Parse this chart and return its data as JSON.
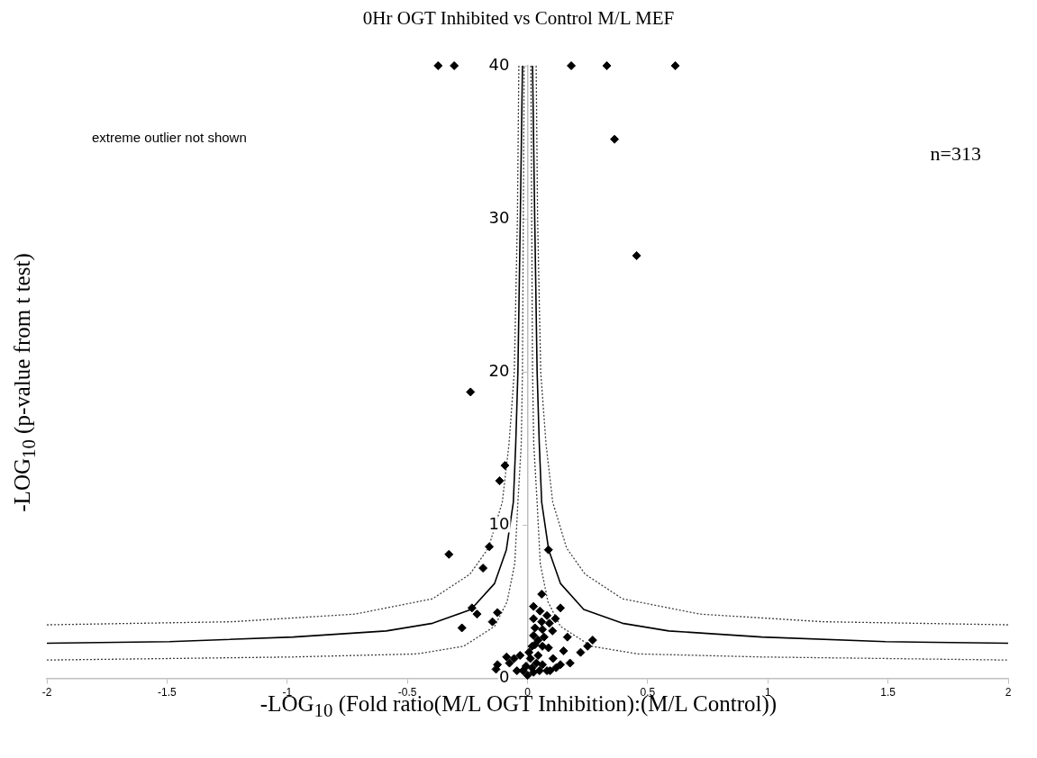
{
  "chart_data": {
    "type": "scatter",
    "title": "0Hr OGT Inhibited vs Control M/L MEF",
    "xlabel": "-LOG$_{10}$ (Fold ratio(M/L OGT Inhibition):(M/L Control))",
    "ylabel": "-LOG$_{10}$ (p-value from t test)",
    "annotations": [
      "extreme outlier not shown",
      "n=313"
    ],
    "xlim": [
      -2,
      2
    ],
    "xticks": [
      -2,
      -1.5,
      -1,
      -0.5,
      0,
      0.5,
      1,
      1.5,
      2
    ],
    "ylim": [
      0,
      40
    ],
    "yticks": [
      0,
      10,
      20,
      30,
      40
    ],
    "grid": false,
    "legend": false,
    "marker": "diamond",
    "series": [
      {
        "type": "scatter",
        "color": "#000000",
        "x": [
          -0.372,
          -0.305,
          0.182,
          0.33,
          0.615,
          0.362,
          0.454,
          -0.237,
          -0.094,
          -0.116,
          -0.159,
          -0.327,
          -0.185,
          0.087,
          -0.231,
          -0.21,
          -0.125,
          -0.146,
          -0.273,
          0.059,
          0.025,
          0.137,
          0.052,
          0.081,
          0.025,
          0.116,
          0.059,
          0.091,
          0.062,
          0.104,
          0.025,
          0.069,
          0.166,
          0.271,
          0.25,
          0.221,
          0.15,
          0.087,
          0.031,
          0.044,
          0.177,
          0.137,
          -0.125,
          -0.131,
          -0.087,
          -0.056,
          -0.031,
          -0.075,
          -0.044,
          -0.019,
          0,
          0.012,
          0.019,
          0.037,
          0.062,
          0.081,
          0.106,
          0.094,
          0.119,
          -0.006,
          0.025,
          0.05,
          0.006,
          0.031,
          0.044,
          0.062,
          0.019
        ],
        "values": [
          40,
          40,
          40,
          40,
          40,
          35.2,
          27.6,
          18.7,
          13.9,
          12.9,
          8.6,
          8.1,
          7.2,
          8.4,
          4.6,
          4.2,
          4.3,
          3.7,
          3.3,
          5.5,
          4.7,
          4.6,
          4.4,
          4.1,
          3.9,
          3.9,
          3.7,
          3.6,
          3.2,
          3.1,
          2.8,
          2.7,
          2.7,
          2.5,
          2.1,
          1.7,
          1.8,
          2.0,
          2.2,
          1.5,
          1.0,
          0.9,
          0.9,
          0.6,
          1.4,
          1.3,
          1.5,
          1.0,
          0.5,
          0.5,
          0.2,
          1.3,
          0.7,
          1.0,
          0.9,
          0.5,
          1.3,
          0.5,
          0.7,
          0.8,
          0.4,
          0.5,
          1.7,
          3.3,
          2.5,
          2.1,
          2.1
        ]
      },
      {
        "type": "line",
        "color": "#000000",
        "line_style": "solid",
        "marker": "none",
        "x": [
          -2,
          -1.49,
          -0.975,
          -0.588,
          -0.395,
          -0.235,
          -0.137,
          -0.088,
          -0.059,
          -0.049,
          -0.04,
          -0.03,
          -0.021
        ],
        "values": [
          2.3,
          2.4,
          2.7,
          3.1,
          3.6,
          4.5,
          6.2,
          8.4,
          11.5,
          15.3,
          20,
          30,
          40
        ]
      },
      {
        "type": "line",
        "color": "#000000",
        "line_style": "solid",
        "marker": "none",
        "x": [
          0.021,
          0.03,
          0.04,
          0.049,
          0.059,
          0.088,
          0.137,
          0.234,
          0.395,
          0.588,
          0.975,
          1.49,
          2
        ],
        "values": [
          40,
          30,
          20,
          15.3,
          11.5,
          8.4,
          6.2,
          4.5,
          3.6,
          3.1,
          2.7,
          2.4,
          2.3
        ]
      },
      {
        "type": "line",
        "color": "#404040",
        "line_style": "dotted",
        "marker": "none",
        "x": [
          -2,
          -1.23,
          -0.717,
          -0.395,
          -0.24,
          -0.163,
          -0.105,
          -0.077,
          -0.055,
          -0.042,
          -0.036
        ],
        "values": [
          3.5,
          3.7,
          4.2,
          5.2,
          6.8,
          8.5,
          11.5,
          15.3,
          20,
          30,
          40
        ]
      },
      {
        "type": "line",
        "color": "#404040",
        "line_style": "dotted",
        "marker": "none",
        "x": [
          0.036,
          0.042,
          0.055,
          0.077,
          0.105,
          0.163,
          0.24,
          0.395,
          0.717,
          1.23,
          2
        ],
        "values": [
          40,
          30,
          20,
          15.3,
          11.5,
          8.5,
          6.8,
          5.2,
          4.2,
          3.7,
          3.5
        ]
      },
      {
        "type": "line",
        "color": "#404040",
        "line_style": "dotted",
        "marker": "none",
        "x": [
          -2,
          -0.975,
          -0.459,
          -0.266,
          -0.137,
          -0.085,
          -0.053,
          -0.04,
          -0.026,
          -0.021,
          -0.014
        ],
        "values": [
          1.2,
          1.4,
          1.6,
          2.1,
          3.4,
          5,
          7.5,
          11.5,
          15.3,
          20,
          40
        ]
      },
      {
        "type": "line",
        "color": "#404040",
        "line_style": "dotted",
        "marker": "none",
        "x": [
          0.014,
          0.021,
          0.026,
          0.04,
          0.053,
          0.085,
          0.137,
          0.266,
          0.459,
          0.975,
          2
        ],
        "values": [
          40,
          20,
          15.3,
          11.5,
          7.5,
          5,
          3.4,
          2.1,
          1.6,
          1.4,
          1.2
        ]
      }
    ]
  }
}
